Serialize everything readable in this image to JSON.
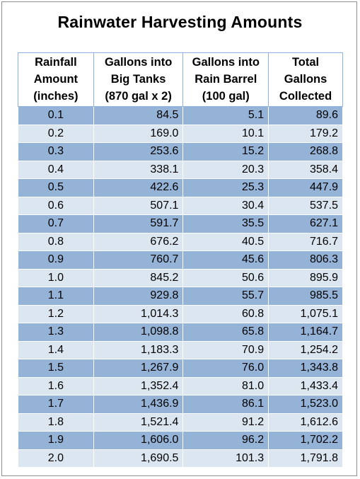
{
  "title": "Rainwater Harvesting Amounts",
  "colors": {
    "header_border": "#8db3e2",
    "row_dark": "#95b3d7",
    "row_light": "#dce6f1",
    "frame_border": "#8e8e8e"
  },
  "table": {
    "headers": [
      [
        "Rainfall",
        "Amount",
        "(inches)"
      ],
      [
        "Gallons into",
        "Big Tanks",
        "(870 gal x 2)"
      ],
      [
        "Gallons into",
        "Rain Barrel",
        "(100 gal)"
      ],
      [
        "Total",
        "Gallons",
        "Collected"
      ]
    ],
    "rows": [
      [
        "0.1",
        "84.5",
        "5.1",
        "89.6"
      ],
      [
        "0.2",
        "169.0",
        "10.1",
        "179.2"
      ],
      [
        "0.3",
        "253.6",
        "15.2",
        "268.8"
      ],
      [
        "0.4",
        "338.1",
        "20.3",
        "358.4"
      ],
      [
        "0.5",
        "422.6",
        "25.3",
        "447.9"
      ],
      [
        "0.6",
        "507.1",
        "30.4",
        "537.5"
      ],
      [
        "0.7",
        "591.7",
        "35.5",
        "627.1"
      ],
      [
        "0.8",
        "676.2",
        "40.5",
        "716.7"
      ],
      [
        "0.9",
        "760.7",
        "45.6",
        "806.3"
      ],
      [
        "1.0",
        "845.2",
        "50.6",
        "895.9"
      ],
      [
        "1.1",
        "929.8",
        "55.7",
        "985.5"
      ],
      [
        "1.2",
        "1,014.3",
        "60.8",
        "1,075.1"
      ],
      [
        "1.3",
        "1,098.8",
        "65.8",
        "1,164.7"
      ],
      [
        "1.4",
        "1,183.3",
        "70.9",
        "1,254.2"
      ],
      [
        "1.5",
        "1,267.9",
        "76.0",
        "1,343.8"
      ],
      [
        "1.6",
        "1,352.4",
        "81.0",
        "1,433.4"
      ],
      [
        "1.7",
        "1,436.9",
        "86.1",
        "1,523.0"
      ],
      [
        "1.8",
        "1,521.4",
        "91.2",
        "1,612.6"
      ],
      [
        "1.9",
        "1,606.0",
        "96.2",
        "1,702.2"
      ],
      [
        "2.0",
        "1,690.5",
        "101.3",
        "1,791.8"
      ]
    ]
  }
}
